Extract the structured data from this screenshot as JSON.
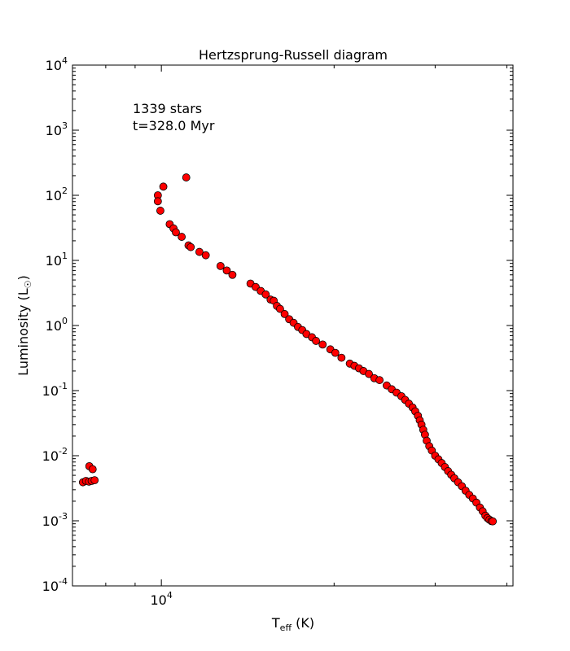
{
  "chart_data": {
    "type": "scatter",
    "title": "Hertzsprung-Russell diagram",
    "xlabel": {
      "base": "T",
      "sub": "eff",
      "unit": " (K)"
    },
    "ylabel": {
      "text": "Luminosity (L",
      "sub": "☉",
      "close": ")"
    },
    "xscale": "log",
    "yscale": "log",
    "xlim": [
      7000,
      41000
    ],
    "ylim": [
      0.0001,
      10000
    ],
    "x_ticks": [
      {
        "value": 10000,
        "base": "10",
        "exp": "4"
      }
    ],
    "y_ticks": [
      {
        "value": 10000,
        "base": "10",
        "exp": "4"
      },
      {
        "value": 1000,
        "base": "10",
        "exp": "3"
      },
      {
        "value": 100,
        "base": "10",
        "exp": "2"
      },
      {
        "value": 10,
        "base": "10",
        "exp": "1"
      },
      {
        "value": 1,
        "base": "10",
        "exp": "0"
      },
      {
        "value": 0.1,
        "base": "10",
        "exp": "-1"
      },
      {
        "value": 0.01,
        "base": "10",
        "exp": "-2"
      },
      {
        "value": 0.001,
        "base": "10",
        "exp": "-3"
      },
      {
        "value": 0.0001,
        "base": "10",
        "exp": "-4"
      }
    ],
    "annotations": [
      "1339 stars",
      "t=328.0 Myr"
    ],
    "marker_fill": "#ff0000",
    "marker_edge": "#000000",
    "grid": false,
    "legend": "none",
    "series": [
      {
        "points": [
          [
            7300,
            0.0039
          ],
          [
            7390,
            0.0041
          ],
          [
            7480,
            0.004
          ],
          [
            7490,
            0.0069
          ],
          [
            7560,
            0.0041
          ],
          [
            7590,
            0.0062
          ],
          [
            7650,
            0.0042
          ],
          [
            9860,
            100
          ],
          [
            9860,
            81
          ],
          [
            9960,
            58
          ],
          [
            10080,
            136
          ],
          [
            11050,
            188
          ],
          [
            10340,
            36
          ],
          [
            10500,
            31
          ],
          [
            10600,
            27
          ],
          [
            10850,
            23
          ],
          [
            11150,
            17
          ],
          [
            11250,
            16
          ],
          [
            11650,
            13.5
          ],
          [
            11950,
            12
          ],
          [
            12680,
            8.2
          ],
          [
            13000,
            7
          ],
          [
            13300,
            6
          ],
          [
            14300,
            4.4
          ],
          [
            14600,
            3.9
          ],
          [
            14900,
            3.4
          ],
          [
            15200,
            3.0
          ],
          [
            15500,
            2.5
          ],
          [
            15700,
            2.4
          ],
          [
            15900,
            2.0
          ],
          [
            16100,
            1.8
          ],
          [
            16400,
            1.5
          ],
          [
            16700,
            1.25
          ],
          [
            17000,
            1.1
          ],
          [
            17300,
            0.95
          ],
          [
            17600,
            0.85
          ],
          [
            17900,
            0.74
          ],
          [
            18300,
            0.66
          ],
          [
            18600,
            0.58
          ],
          [
            19100,
            0.51
          ],
          [
            19700,
            0.43
          ],
          [
            20100,
            0.38
          ],
          [
            20600,
            0.32
          ],
          [
            21300,
            0.26
          ],
          [
            21700,
            0.24
          ],
          [
            22100,
            0.22
          ],
          [
            22500,
            0.2
          ],
          [
            23000,
            0.18
          ],
          [
            23500,
            0.155
          ],
          [
            24000,
            0.145
          ],
          [
            24700,
            0.12
          ],
          [
            25200,
            0.105
          ],
          [
            25700,
            0.093
          ],
          [
            26200,
            0.082
          ],
          [
            26600,
            0.072
          ],
          [
            27000,
            0.063
          ],
          [
            27400,
            0.055
          ],
          [
            27700,
            0.048
          ],
          [
            28000,
            0.041
          ],
          [
            28200,
            0.035
          ],
          [
            28400,
            0.03
          ],
          [
            28600,
            0.025
          ],
          [
            28800,
            0.021
          ],
          [
            29000,
            0.017
          ],
          [
            29300,
            0.014
          ],
          [
            29600,
            0.012
          ],
          [
            30000,
            0.01
          ],
          [
            30400,
            0.0088
          ],
          [
            30800,
            0.0077
          ],
          [
            31200,
            0.0067
          ],
          [
            31600,
            0.0058
          ],
          [
            32000,
            0.0051
          ],
          [
            32400,
            0.0045
          ],
          [
            32900,
            0.0039
          ],
          [
            33400,
            0.0034
          ],
          [
            33900,
            0.0029
          ],
          [
            34400,
            0.0025
          ],
          [
            34900,
            0.0022
          ],
          [
            35400,
            0.0019
          ],
          [
            35900,
            0.0016
          ],
          [
            36300,
            0.0014
          ],
          [
            36700,
            0.0012
          ],
          [
            37000,
            0.0011
          ],
          [
            37300,
            0.00104
          ],
          [
            37600,
            0.00099
          ],
          [
            37800,
            0.00098
          ]
        ]
      }
    ]
  }
}
